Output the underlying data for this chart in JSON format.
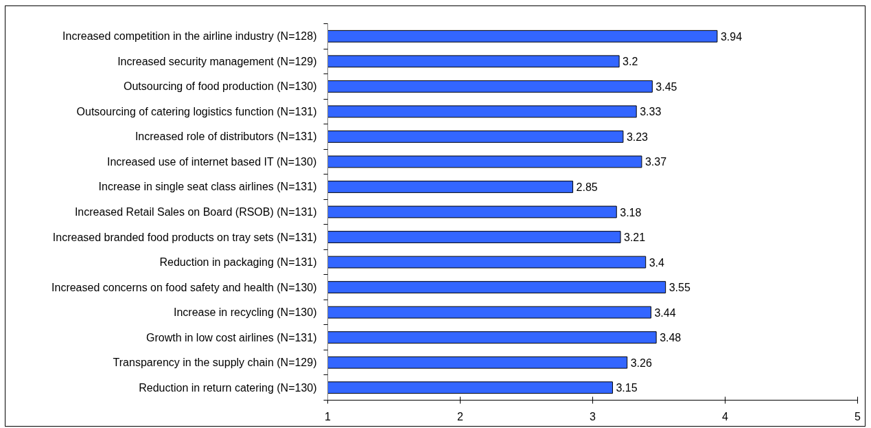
{
  "chart_data": {
    "type": "bar",
    "orientation": "horizontal",
    "categories": [
      "Increased competition in the airline industry (N=128)",
      "Increased security management (N=129)",
      "Outsourcing of food production (N=130)",
      "Outsourcing of catering logistics function (N=131)",
      "Increased role of distributors (N=131)",
      "Increased use of internet based IT (N=130)",
      "Increase in single seat class airlines (N=131)",
      "Increased Retail Sales on Board (RSOB) (N=131)",
      "Increased branded food products on tray sets (N=131)",
      "Reduction in packaging (N=131)",
      "Increased concerns on food safety and health (N=130)",
      "Increase in recycling (N=130)",
      "Growth in low cost airlines (N=131)",
      "Transparency in the supply chain (N=129)",
      "Reduction in return catering (N=130)"
    ],
    "values": [
      3.94,
      3.2,
      3.45,
      3.33,
      3.23,
      3.37,
      2.85,
      3.18,
      3.21,
      3.4,
      3.55,
      3.44,
      3.48,
      3.26,
      3.15
    ],
    "color": "#3366ff",
    "xlim": [
      1,
      5
    ],
    "xticks": [
      1,
      2,
      3,
      4,
      5
    ],
    "data_labels": true
  }
}
